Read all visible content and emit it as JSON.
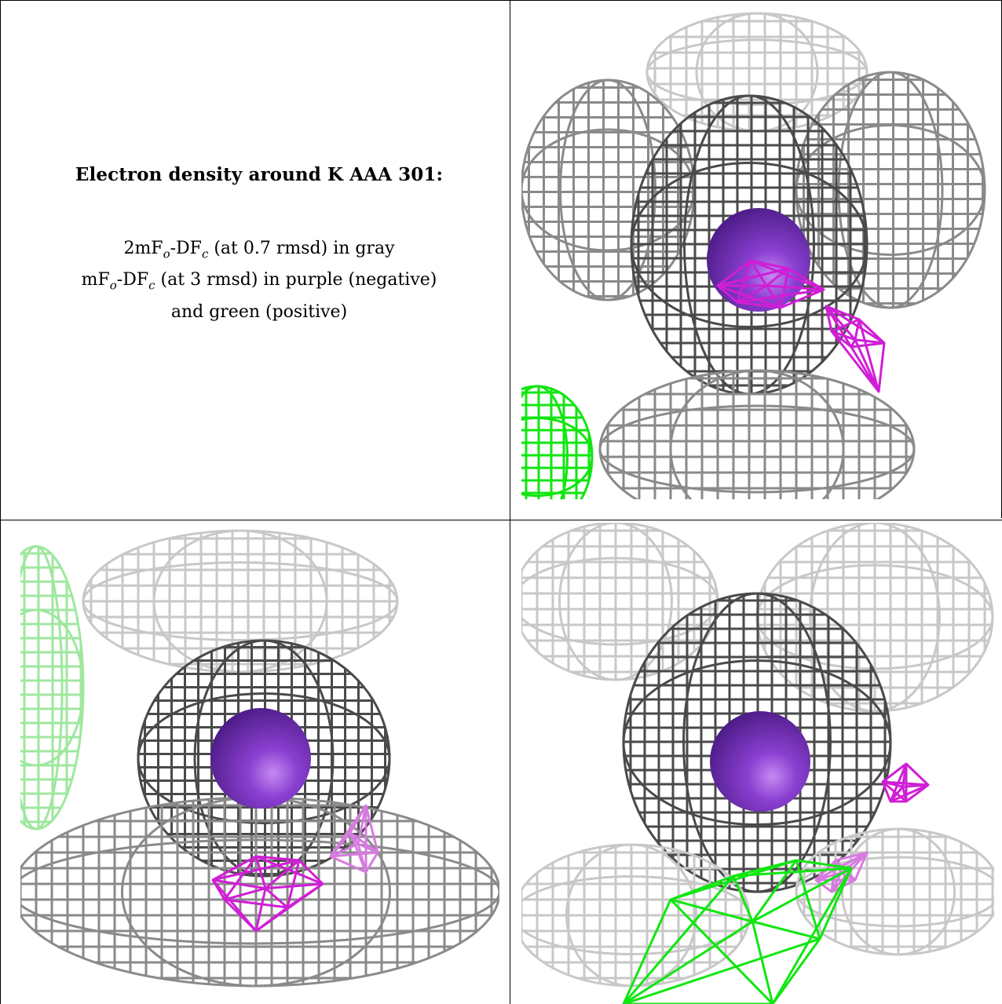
{
  "caption": {
    "title": "Electron density around K AAA 301:",
    "line1": {
      "main": "2mF",
      "sub1": "o",
      "mid": "-DF",
      "sub2": "c",
      "rest": " (at 0.7 rmsd) in gray"
    },
    "line2": {
      "main": "mF",
      "sub1": "o",
      "mid": "-DF",
      "sub2": "c",
      "rest": " (at 3 rmsd) in purple (negative)"
    },
    "line3": "and green (positive)"
  },
  "colors": {
    "grid_dark": "#4a4a4a",
    "grid_mid": "#8a8a8a",
    "grid_light": "#c8c8c8",
    "atom": "#8a3fd1",
    "negative": "#d01ed6",
    "positive": "#11e611"
  }
}
